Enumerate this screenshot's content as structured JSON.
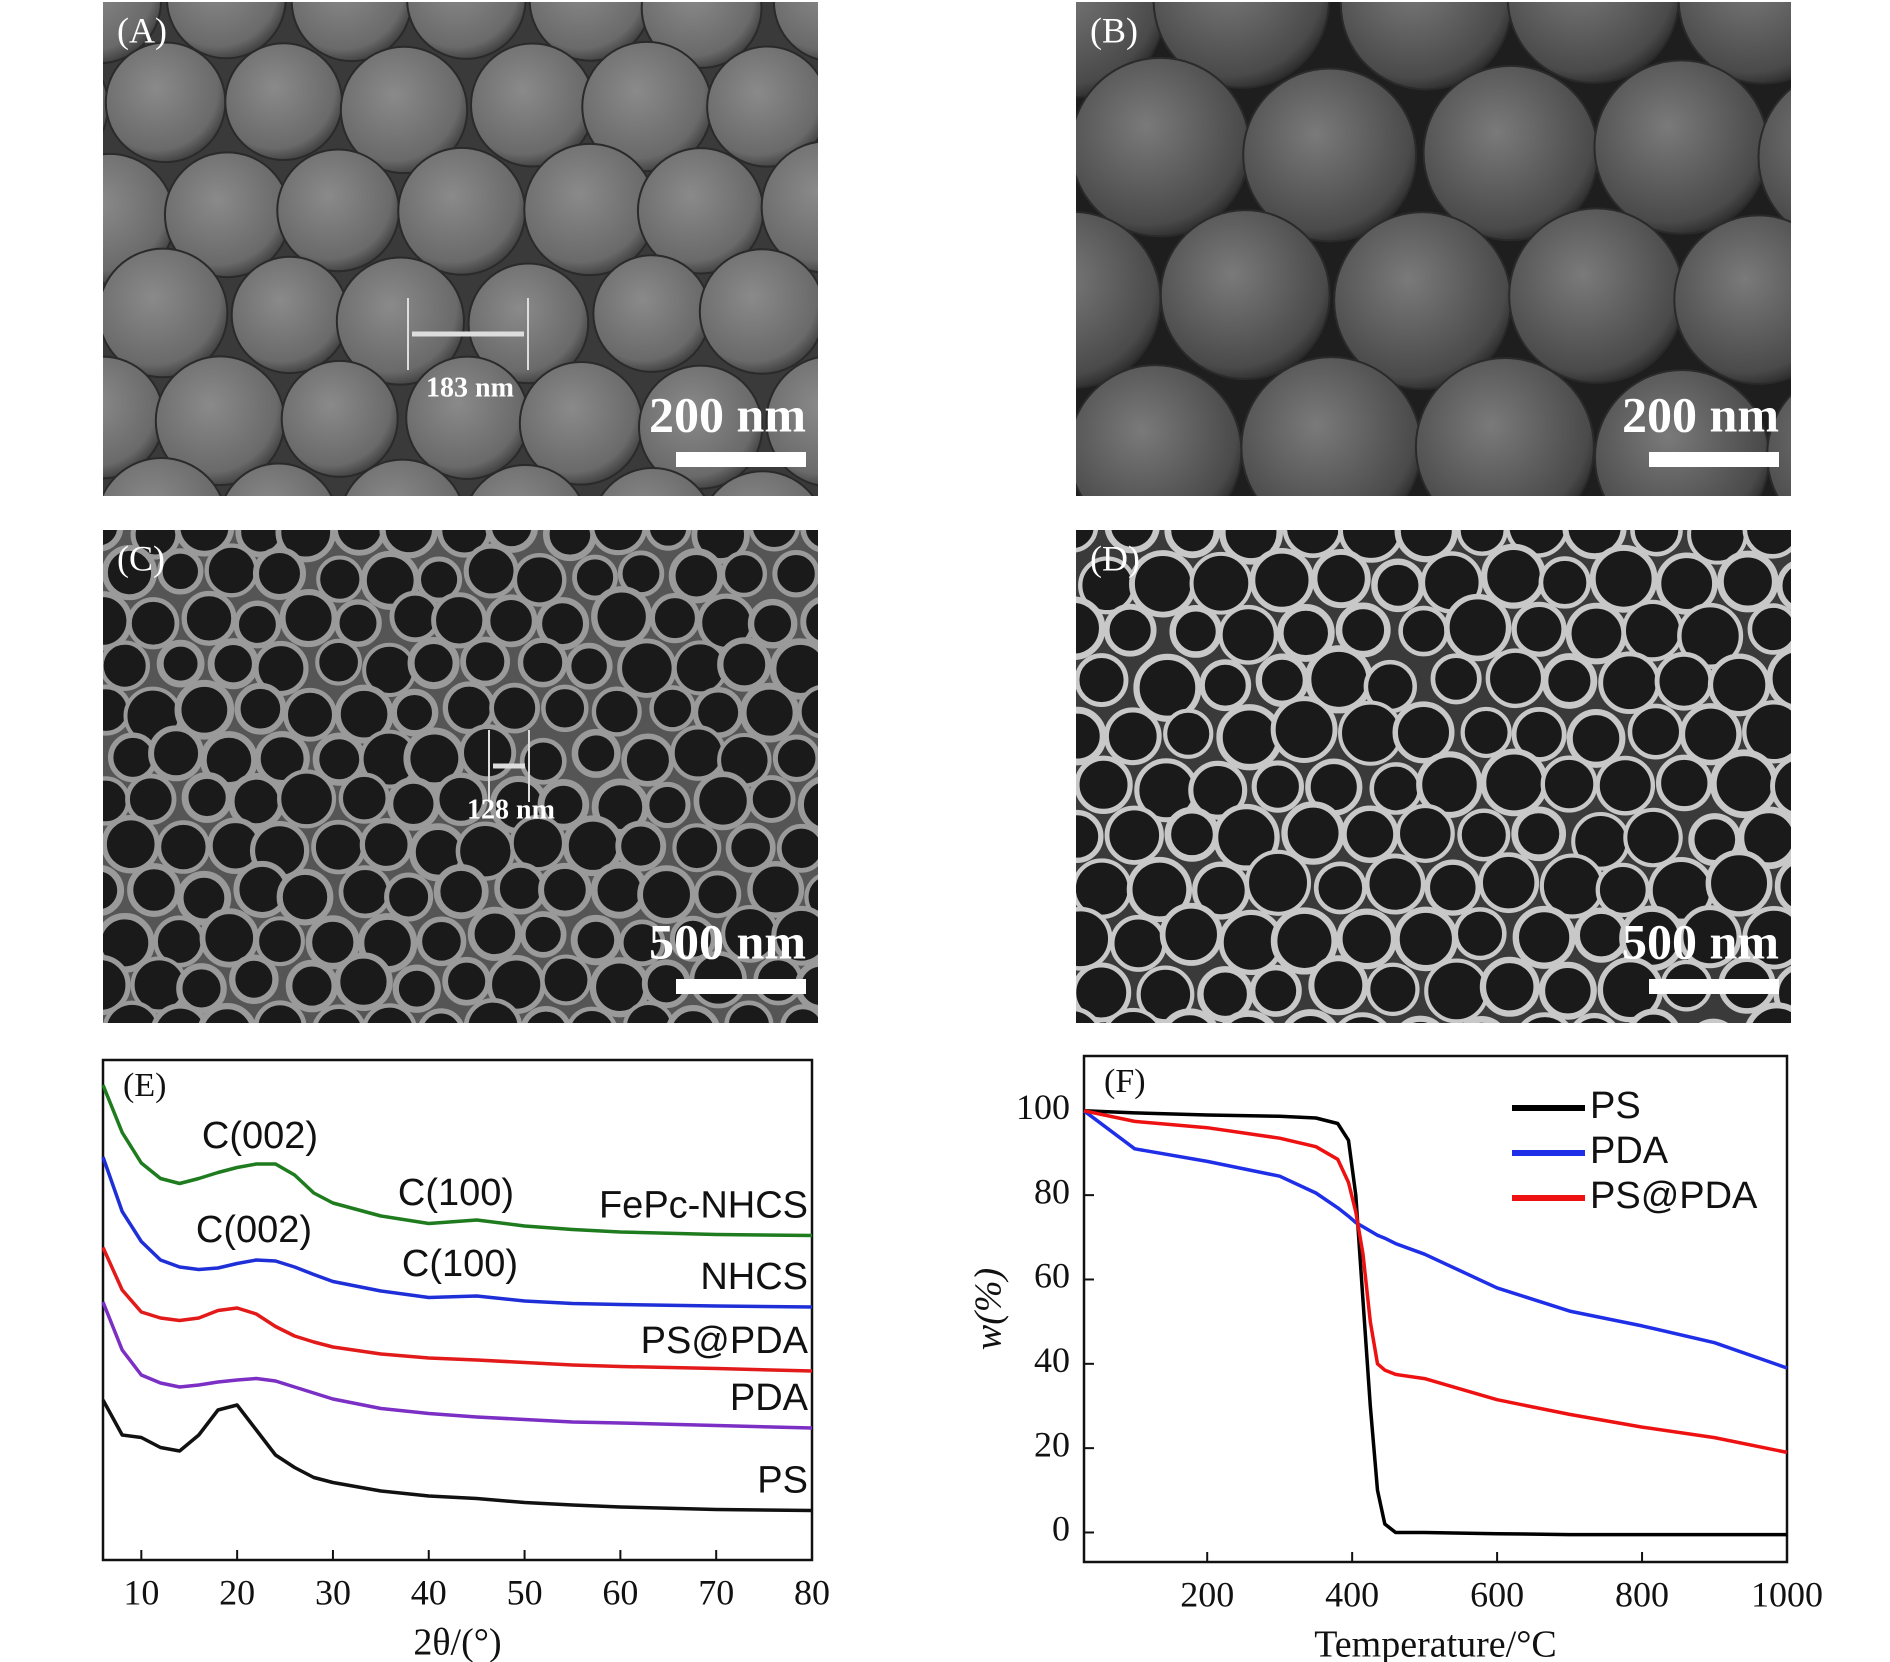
{
  "panels": [
    {
      "label": "(A)",
      "scale_bar": "200 nm",
      "measurement": "183 nm"
    },
    {
      "label": "(B)",
      "scale_bar": "200 nm"
    },
    {
      "label": "(C)",
      "scale_bar": "500 nm",
      "measurement": "128 nm"
    },
    {
      "label": "(D)",
      "scale_bar": "500 nm"
    }
  ],
  "chart_data": [
    {
      "type": "line",
      "panel_label": "(E)",
      "x_label": "2θ/(°)",
      "x": [
        6,
        8,
        10,
        12,
        14,
        16,
        18,
        20,
        22,
        24,
        26,
        28,
        30,
        35,
        40,
        45,
        50,
        55,
        60,
        70,
        80
      ],
      "xlim": [
        6,
        80
      ],
      "xticks": [
        10,
        20,
        30,
        40,
        50,
        60,
        70,
        80
      ],
      "ylim": [
        0,
        100
      ],
      "annotations": [
        "C(002)",
        "C(100)",
        "C(002)",
        "C(100)"
      ],
      "series": [
        {
          "name": "FePc-NHCS",
          "color": "#1e7b1e",
          "values": [
            95,
            85.5,
            79.4,
            76.3,
            75.3,
            76.3,
            77.5,
            78.5,
            79.2,
            79.2,
            77,
            73.4,
            71.4,
            68.8,
            67.3,
            68,
            66.8,
            66.1,
            65.6,
            65.1,
            64.9
          ]
        },
        {
          "name": "NHCS",
          "color": "#1f2fd8",
          "values": [
            80.6,
            69.7,
            63.7,
            60,
            58.6,
            58.1,
            58.4,
            59.3,
            60,
            59.8,
            58.6,
            57.1,
            55.7,
            53.8,
            52.5,
            52.8,
            51.8,
            51.3,
            51.1,
            50.8,
            50.6
          ]
        },
        {
          "name": "PS@PDA",
          "color": "#e31a1a",
          "values": [
            62.5,
            54,
            49.6,
            48.4,
            47.9,
            48.4,
            49.9,
            50.4,
            49.2,
            46.7,
            44.8,
            43.6,
            42.6,
            41.2,
            40.4,
            40,
            39.5,
            39,
            38.7,
            38.3,
            37.8
          ]
        },
        {
          "name": "PDA",
          "color": "#7b2fc4",
          "values": [
            51.6,
            42,
            37,
            35.4,
            34.6,
            35,
            35.6,
            36,
            36.3,
            35.8,
            34.6,
            33.4,
            32.2,
            30.3,
            29.3,
            28.6,
            28.1,
            27.6,
            27.4,
            26.9,
            26.4
          ]
        },
        {
          "name": "PS",
          "color": "#111111",
          "values": [
            32,
            25,
            24.5,
            22.5,
            21.8,
            25,
            30,
            31,
            26,
            21,
            18.5,
            16.5,
            15.5,
            13.8,
            12.8,
            12.3,
            11.5,
            11,
            10.6,
            10.1,
            9.9
          ]
        }
      ]
    },
    {
      "type": "line",
      "panel_label": "(F)",
      "x_label": "Temperature/°C",
      "y_label": "w(%)",
      "x": [
        30,
        100,
        200,
        300,
        350,
        380,
        395,
        405,
        415,
        425,
        435,
        445,
        460,
        500,
        600,
        700,
        800,
        900,
        1000
      ],
      "xlim": [
        30,
        1000
      ],
      "xticks": [
        200,
        400,
        600,
        800,
        1000
      ],
      "ylim": [
        -7,
        113
      ],
      "yticks": [
        0,
        20,
        40,
        60,
        80,
        100
      ],
      "legend": "upper right",
      "series": [
        {
          "name": "PS",
          "color": "#000000",
          "values": [
            100,
            99.5,
            99,
            98.7,
            98.3,
            97,
            93,
            80,
            55,
            30,
            10,
            2,
            0,
            0,
            -0.3,
            -0.5,
            -0.5,
            -0.5,
            -0.5
          ]
        },
        {
          "name": "PDA",
          "color": "#1f2fe8",
          "values": [
            100,
            91,
            88,
            84.5,
            80.5,
            77,
            75,
            73.5,
            72.5,
            71.5,
            70.5,
            69.8,
            68.5,
            66,
            58,
            52.5,
            49,
            45,
            39
          ]
        },
        {
          "name": "PS@PDA",
          "color": "#ee1111",
          "values": [
            100,
            97.5,
            96,
            93.5,
            91.5,
            88.5,
            83,
            76,
            66,
            50,
            40,
            38.5,
            37.5,
            36.5,
            31.5,
            28,
            25,
            22.5,
            19
          ]
        }
      ]
    }
  ]
}
